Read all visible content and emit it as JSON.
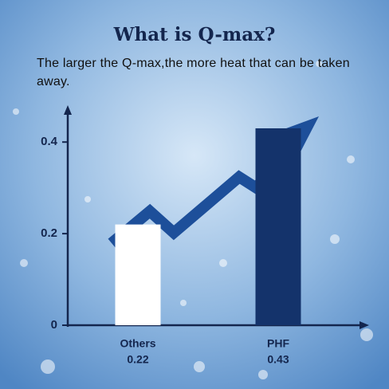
{
  "chart_data": {
    "type": "bar",
    "title": "What is Q-max?",
    "subtitle": "The larger the Q-max,the more heat that can be taken away.",
    "categories": [
      "Others",
      "PHF"
    ],
    "values": [
      0.22,
      0.43
    ],
    "colors": [
      "#ffffff",
      "#14336b"
    ],
    "ylim": [
      0,
      0.47
    ],
    "yticks": [
      0,
      0.2,
      0.4
    ]
  }
}
